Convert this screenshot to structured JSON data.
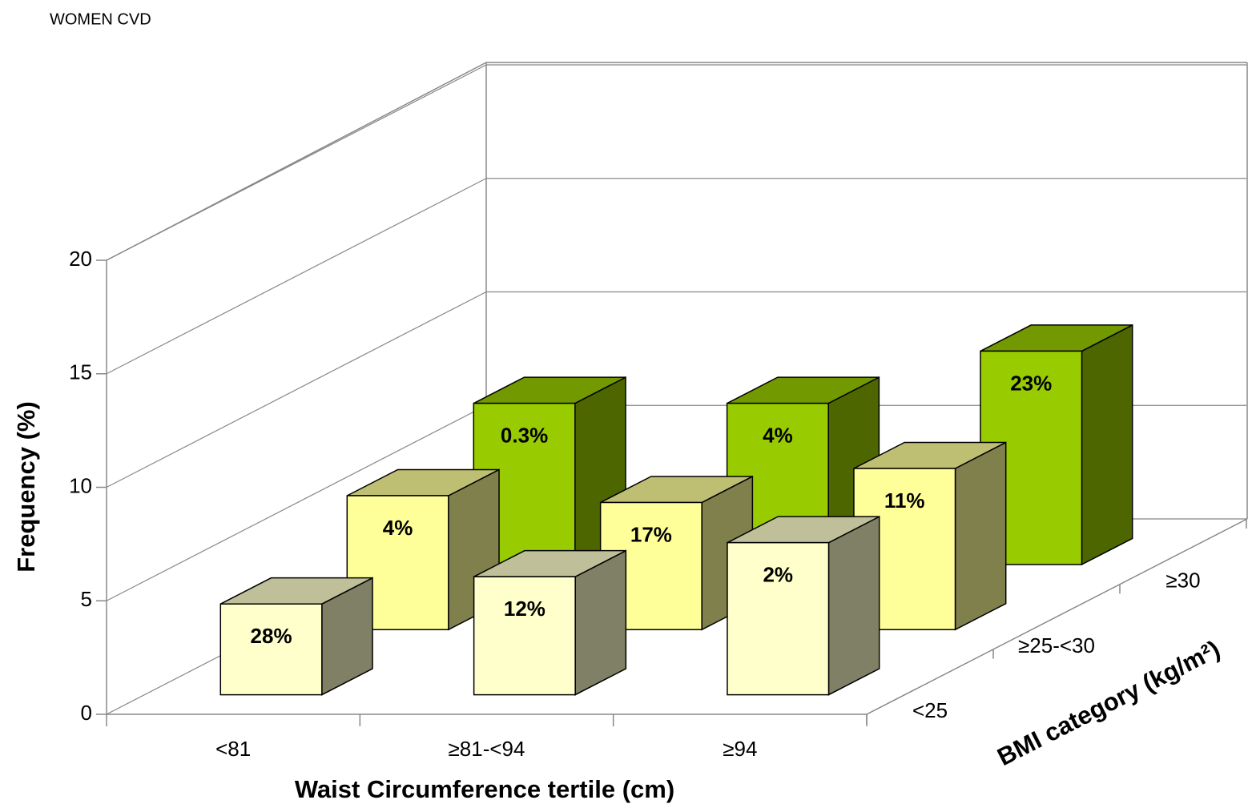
{
  "chart_data": {
    "type": "bar3d",
    "title": "WOMEN CVD",
    "x_label": "Waist Circumference tertile (cm)",
    "y_label": "Frequency (%)",
    "z_label": "BMI category (kg/m²)",
    "categories": [
      "<81",
      "≥81-<94",
      "≥94"
    ],
    "series": [
      {
        "name": "<25",
        "color": "#ffffcc",
        "values": [
          4.0,
          5.2,
          6.7
        ],
        "labels": [
          "28%",
          "12%",
          "2%"
        ]
      },
      {
        "name": "≥25-<30",
        "color": "#ffff99",
        "values": [
          5.9,
          5.6,
          7.1
        ],
        "labels": [
          "4%",
          "17%",
          "11%"
        ]
      },
      {
        "name": "≥30",
        "color": "#99cc00",
        "values": [
          7.1,
          7.1,
          9.4
        ],
        "labels": [
          "0.3%",
          "4%",
          "23%"
        ]
      }
    ],
    "ylim": [
      0,
      20
    ],
    "yticks": [
      0,
      5,
      10,
      15,
      20
    ],
    "grid": true
  }
}
